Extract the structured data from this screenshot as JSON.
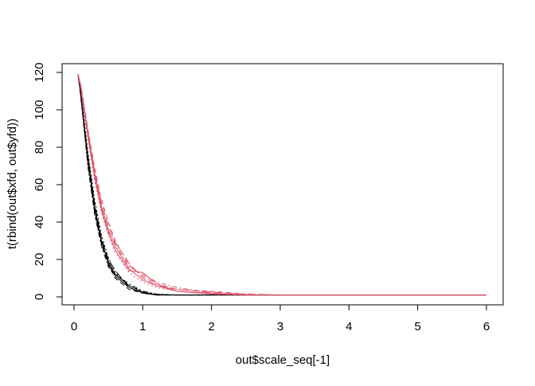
{
  "chart_data": {
    "type": "line",
    "title": "",
    "xlabel": "out$scale_seq[-1]",
    "ylabel": "t(rbind(out$xfd, out$yfd))",
    "xlim": [
      0,
      6
    ],
    "ylim": [
      0,
      120
    ],
    "xticks": [
      "0",
      "1",
      "2",
      "3",
      "4",
      "5",
      "6"
    ],
    "yticks": [
      "0",
      "20",
      "40",
      "60",
      "80",
      "100",
      "120"
    ],
    "grid": false,
    "legend": "none",
    "colors": {
      "xfd": "#000000",
      "yfd": "#DF536B"
    },
    "x": [
      0.06,
      0.1,
      0.2,
      0.3,
      0.4,
      0.5,
      0.6,
      0.8,
      1.0,
      1.2,
      1.5,
      2.0,
      2.5,
      3.0,
      4.0,
      5.0,
      6.0
    ],
    "series": [
      {
        "group": "xfd",
        "lty": 1,
        "values": [
          119,
          108,
          75,
          48,
          30,
          18,
          11,
          5,
          2,
          1,
          1,
          1,
          1,
          1,
          1,
          1,
          1
        ]
      },
      {
        "group": "xfd",
        "lty": 2,
        "values": [
          119,
          106,
          72,
          45,
          28,
          17,
          10,
          4,
          2,
          1,
          1,
          1,
          1,
          1,
          1,
          1,
          1
        ]
      },
      {
        "group": "xfd",
        "lty": 3,
        "values": [
          118,
          109,
          78,
          52,
          33,
          21,
          13,
          6,
          3,
          1.5,
          1,
          1,
          1,
          1,
          1,
          1,
          1
        ]
      },
      {
        "group": "xfd",
        "lty": 4,
        "values": [
          119,
          107,
          70,
          44,
          27,
          16,
          12,
          7,
          3,
          1.5,
          1,
          1,
          1,
          1,
          1,
          1,
          1
        ]
      },
      {
        "group": "xfd",
        "lty": 5,
        "values": [
          118,
          108,
          76,
          50,
          31,
          20,
          14,
          5,
          2,
          1,
          1,
          1,
          1,
          1,
          1,
          1,
          1
        ]
      },
      {
        "group": "xfd",
        "lty": 1,
        "values": [
          119,
          107,
          73,
          47,
          29,
          19,
          12,
          6,
          2.5,
          1,
          1,
          1,
          1,
          1,
          1,
          1,
          1
        ]
      },
      {
        "group": "yfd",
        "lty": 1,
        "values": [
          119,
          112,
          88,
          66,
          48,
          36,
          27,
          15,
          9,
          6,
          3,
          1.5,
          1,
          1,
          1,
          1,
          1
        ]
      },
      {
        "group": "yfd",
        "lty": 2,
        "values": [
          119,
          113,
          90,
          69,
          52,
          40,
          30,
          17,
          11,
          7,
          4,
          3,
          1.5,
          1,
          1,
          1,
          1
        ]
      },
      {
        "group": "yfd",
        "lty": 3,
        "values": [
          118,
          111,
          85,
          62,
          45,
          33,
          24,
          13,
          8,
          5,
          3,
          1.5,
          1,
          1,
          1,
          1,
          1
        ]
      },
      {
        "group": "yfd",
        "lty": 4,
        "values": [
          119,
          112,
          87,
          65,
          47,
          35,
          28,
          16,
          12,
          8,
          5,
          2,
          1,
          1,
          1,
          1,
          1
        ]
      },
      {
        "group": "yfd",
        "lty": 5,
        "values": [
          118,
          113,
          89,
          67,
          50,
          38,
          29,
          18,
          10,
          6,
          4,
          2.5,
          1.5,
          1,
          1,
          1,
          1
        ]
      },
      {
        "group": "yfd",
        "lty": 1,
        "values": [
          119,
          111,
          86,
          64,
          46,
          34,
          25,
          14,
          13,
          7,
          3,
          2,
          1,
          1,
          1,
          1,
          1
        ]
      }
    ]
  }
}
